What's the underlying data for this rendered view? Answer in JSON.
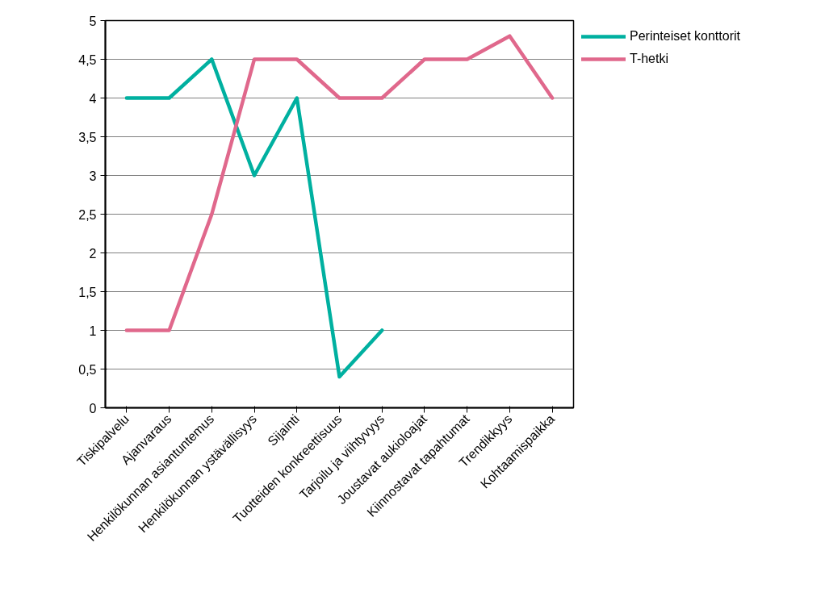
{
  "chart_data": {
    "type": "line",
    "categories": [
      "Tiskipalvelu",
      "Ajanvaraus",
      "Henkilökunnan asiantuntemus",
      "Henkilökunnan ystävällisyys",
      "Sijainti",
      "Tuotteiden konkreettisuus",
      "Tarjoilu ja viihtyvyys",
      "Joustavat aukioloajat",
      "Kiinnostavat tapahtumat",
      "Trendikkyys",
      "Kohtaamispaikka"
    ],
    "series": [
      {
        "name": "Perinteiset konttorit",
        "color": "#00b0a0",
        "values": [
          4,
          4,
          4.5,
          3,
          4,
          0.4,
          1,
          null,
          null,
          null,
          null
        ]
      },
      {
        "name": "T-hetki",
        "color": "#e0688c",
        "values": [
          1,
          1,
          2.5,
          4.5,
          4.5,
          4,
          4,
          4.5,
          4.5,
          4.8,
          4
        ]
      }
    ],
    "ylim": [
      0,
      5
    ],
    "yticks": [
      0,
      {
        "value": 0.5,
        "label": "0,5"
      },
      1,
      {
        "value": 1.5,
        "label": "1,5"
      },
      2,
      {
        "value": 2.5,
        "label": "2,5"
      },
      3,
      {
        "value": 3.5,
        "label": "3,5"
      },
      4,
      {
        "value": 4.5,
        "label": "4,5"
      },
      5
    ],
    "grid": "y",
    "legend": "right",
    "marker": "none",
    "line_style": "solid"
  }
}
